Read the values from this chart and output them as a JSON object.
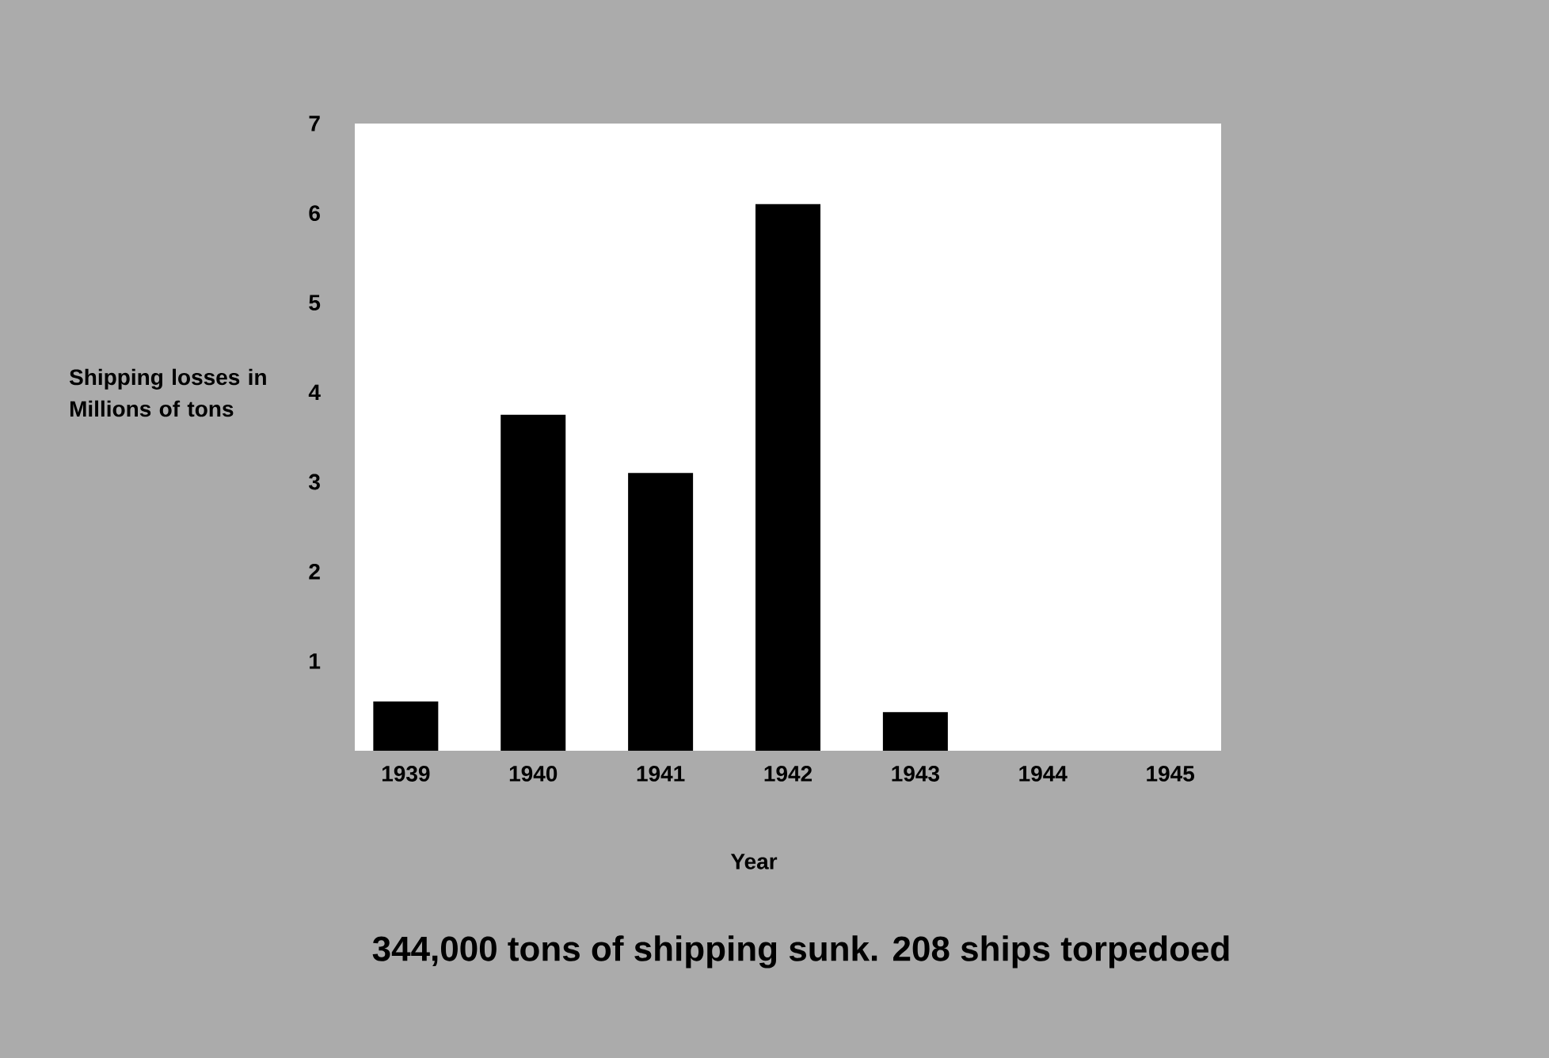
{
  "chart_data": {
    "type": "bar",
    "ylabel": "Shipping losses in Millions of tons",
    "xlabel": "Year",
    "annotations": [
      "344,000 tons of shipping sunk. 208 ships torpedoed"
    ],
    "categories": [
      "1939",
      "1940",
      "1941",
      "1942",
      "1943",
      "1944",
      "1945"
    ],
    "values": [
      0.55,
      3.75,
      3.1,
      6.1,
      0.43,
      0,
      0
    ],
    "color": "#000000",
    "ylim": [
      0,
      7
    ],
    "yticks": [
      1,
      2,
      3,
      4,
      5,
      6,
      7
    ]
  }
}
